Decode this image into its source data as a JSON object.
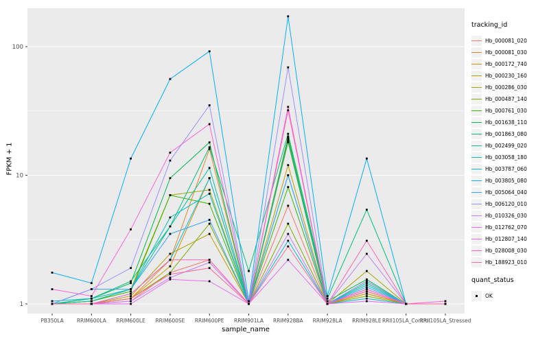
{
  "chart_data": {
    "type": "line",
    "title": "",
    "xlabel": "sample_name",
    "ylabel": "FPKM + 1",
    "y_scale": "log10",
    "y_ticks": [
      "1",
      "10",
      "100"
    ],
    "y_tick_values": [
      1,
      10,
      100
    ],
    "y_minor_values": [
      3.1623,
      31.623
    ],
    "ylim": [
      0.93,
      200
    ],
    "grid": true,
    "legend_position": "right",
    "panel_bg": "#EBEBEB",
    "grid_color": "#FFFFFF",
    "tick_label_color": "#4D4D4D",
    "point_color": "#000000",
    "x_categories": [
      "PB350LA",
      "RRIM600LA",
      "RRIM600LE",
      "RRIM600SE",
      "RRIM600PE",
      "RRIM901LA",
      "RRIM928BA",
      "RRIM928LA",
      "RRIM928LE",
      "RRII105LA_Control",
      "RRII105LA_Stressed"
    ],
    "series": [
      {
        "name": "Hb_000081_020",
        "color": "#F8766D",
        "values": [
          1.0,
          1.0,
          1.05,
          1.75,
          2.2,
          1.0,
          5.8,
          1.0,
          1.3,
          1.0,
          1.0
        ]
      },
      {
        "name": "Hb_000081_030",
        "color": "#E88526",
        "values": [
          1.0,
          1.0,
          1.1,
          2.2,
          16,
          1.0,
          19,
          1.0,
          1.2,
          1.0,
          1.0
        ]
      },
      {
        "name": "Hb_000172_740",
        "color": "#D89000",
        "values": [
          1.0,
          1.0,
          1.1,
          1.96,
          9.5,
          1.0,
          18,
          1.0,
          1.25,
          1.0,
          1.0
        ]
      },
      {
        "name": "Hb_000230_160",
        "color": "#C09B00",
        "values": [
          1.0,
          1.0,
          1.15,
          2.45,
          3.5,
          1.0,
          12,
          1.0,
          1.2,
          1.0,
          1.0
        ]
      },
      {
        "name": "Hb_000286_030",
        "color": "#A3A500",
        "values": [
          1.0,
          1.05,
          1.3,
          7.0,
          7.7,
          1.0,
          20,
          1.0,
          1.8,
          1.0,
          1.0
        ]
      },
      {
        "name": "Hb_000487_140",
        "color": "#7CAE00",
        "values": [
          1.0,
          1.0,
          1.1,
          1.75,
          4.2,
          1.0,
          4.2,
          1.0,
          1.15,
          1.0,
          1.0
        ]
      },
      {
        "name": "Hb_000761_030",
        "color": "#39B600",
        "values": [
          1.0,
          1.05,
          1.25,
          7.0,
          6.0,
          1.0,
          8.1,
          1.0,
          1.5,
          1.0,
          1.0
        ]
      },
      {
        "name": "Hb_001638_110",
        "color": "#00BB4E",
        "values": [
          1.0,
          1.1,
          1.45,
          9.5,
          18,
          1.0,
          19.5,
          1.05,
          1.55,
          1.0,
          1.0
        ]
      },
      {
        "name": "Hb_001863_080",
        "color": "#00BF7D",
        "values": [
          1.0,
          1.1,
          1.5,
          4.0,
          16.5,
          1.8,
          21,
          1.1,
          5.4,
          1.0,
          1.0
        ]
      },
      {
        "name": "Hb_002499_020",
        "color": "#00C1A3",
        "values": [
          1.0,
          1.05,
          1.3,
          4.0,
          11.4,
          1.0,
          18.5,
          1.0,
          1.45,
          1.0,
          1.0
        ]
      },
      {
        "name": "Hb_003058_180",
        "color": "#00BFC4",
        "values": [
          1.05,
          1.1,
          1.3,
          4.7,
          7.2,
          1.0,
          10,
          1.0,
          1.4,
          1.0,
          1.0
        ]
      },
      {
        "name": "Hb_003787_060",
        "color": "#00BAE0",
        "values": [
          1.0,
          1.0,
          1.2,
          2.2,
          9.5,
          1.0,
          3.1,
          1.0,
          1.1,
          1.0,
          1.0
        ]
      },
      {
        "name": "Hb_003805_080",
        "color": "#00B0F6",
        "values": [
          1.75,
          1.45,
          13.5,
          56,
          92,
          1.05,
          172,
          1.15,
          13.5,
          1.0,
          1.0
        ]
      },
      {
        "name": "Hb_005064_040",
        "color": "#35A2FF",
        "values": [
          1.0,
          1.3,
          1.3,
          3.5,
          4.5,
          1.0,
          10,
          1.0,
          1.35,
          1.0,
          1.0
        ]
      },
      {
        "name": "Hb_006120_010",
        "color": "#9590FF",
        "values": [
          1.0,
          1.3,
          1.9,
          13,
          35,
          1.0,
          69,
          1.0,
          1.5,
          1.0,
          1.0
        ]
      },
      {
        "name": "Hb_010326_030",
        "color": "#C77CFF",
        "values": [
          1.0,
          1.0,
          1.05,
          1.6,
          2.1,
          1.0,
          3.5,
          1.0,
          2.45,
          1.0,
          1.0
        ]
      },
      {
        "name": "Hb_012762_070",
        "color": "#E76BF3",
        "values": [
          1.0,
          1.0,
          1.0,
          1.55,
          1.5,
          1.0,
          2.2,
          1.0,
          1.05,
          1.0,
          1.0
        ]
      },
      {
        "name": "Hb_012807_140",
        "color": "#FA62DB",
        "values": [
          1.3,
          1.15,
          3.8,
          15,
          25,
          1.0,
          34,
          1.0,
          1.3,
          1.0,
          1.05
        ]
      },
      {
        "name": "Hb_028008_030",
        "color": "#FF62BC",
        "values": [
          1.0,
          1.0,
          1.2,
          2.2,
          2.2,
          1.0,
          32,
          1.0,
          3.1,
          1.0,
          1.0
        ]
      },
      {
        "name": "Hb_188923_010",
        "color": "#FF6A98",
        "values": [
          1.0,
          1.0,
          1.1,
          1.7,
          1.9,
          1.0,
          2.8,
          1.0,
          1.25,
          1.0,
          1.0
        ]
      }
    ],
    "legend": {
      "color_title": "tracking_id",
      "shape_title": "quant_status",
      "shape_items": [
        {
          "label": "OK"
        }
      ]
    }
  }
}
